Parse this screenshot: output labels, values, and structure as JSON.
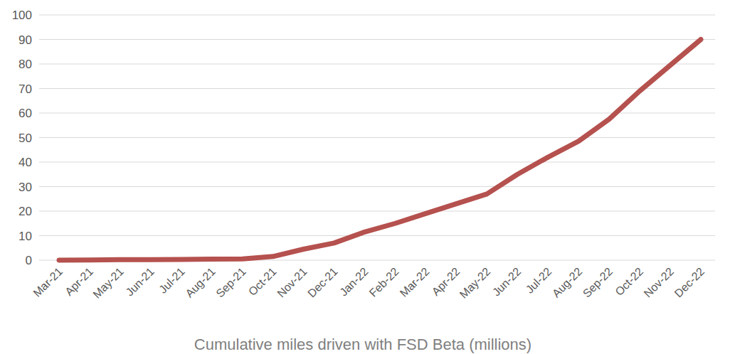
{
  "chart_data": {
    "type": "line",
    "title": "Cumulative miles driven with FSD Beta (millions)",
    "categories": [
      "Mar-21",
      "Apr-21",
      "May-21",
      "Jun-21",
      "Jul-21",
      "Aug-21",
      "Sep-21",
      "Oct-21",
      "Nov-21",
      "Dec-21",
      "Jan-22",
      "Feb-22",
      "Mar-22",
      "Apr-22",
      "May-22",
      "Jun-22",
      "Jul-22",
      "Aug-22",
      "Sep-22",
      "Oct-22",
      "Nov-22",
      "Dec-22"
    ],
    "values": [
      0,
      0.1,
      0.2,
      0.2,
      0.3,
      0.4,
      0.5,
      1.5,
      4.5,
      7,
      11.5,
      15,
      19,
      23,
      27,
      35,
      42,
      48.5,
      57.5,
      69,
      79.5,
      90
    ],
    "color": "#b5514e",
    "ylim": [
      0,
      100
    ],
    "yticks": [
      0,
      10,
      20,
      30,
      40,
      50,
      60,
      70,
      80,
      90,
      100
    ],
    "grid": true
  }
}
